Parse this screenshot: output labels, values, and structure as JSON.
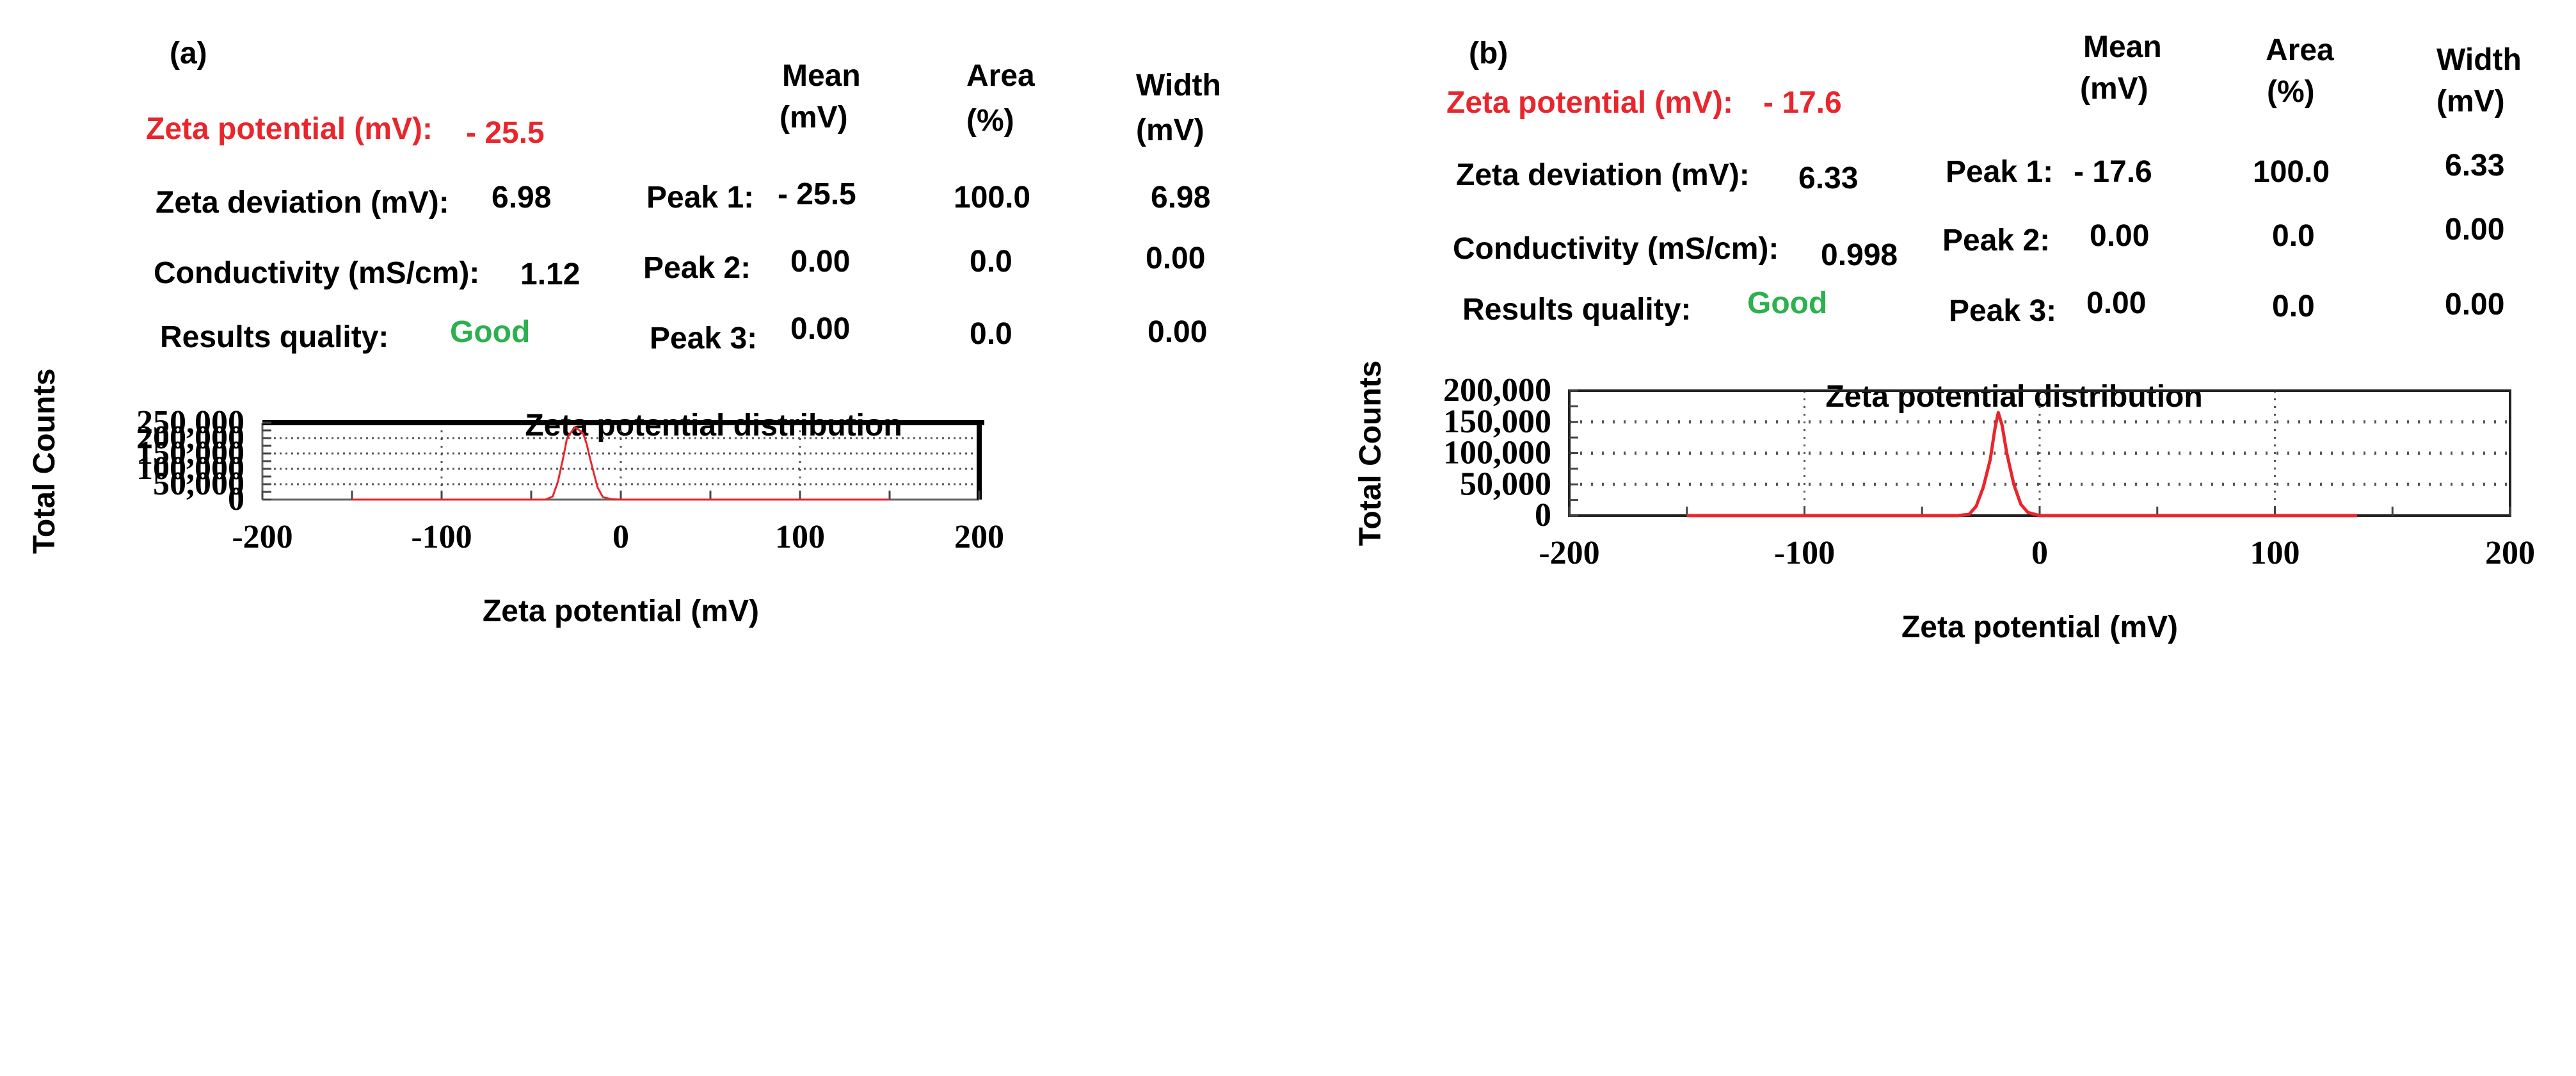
{
  "panels": [
    {
      "label": "(a)",
      "zeta_potential": {
        "label": "Zeta potential (mV):",
        "value": "- 25.5"
      },
      "zeta_deviation": {
        "label": "Zeta deviation (mV):",
        "value": "6.98"
      },
      "conductivity": {
        "label": "Conductivity (mS/cm):",
        "value": "1.12"
      },
      "results_quality": {
        "label": "Results quality:",
        "value": "Good"
      },
      "table": {
        "headers": {
          "mean": [
            "Mean",
            "(mV)"
          ],
          "area": [
            "Area",
            "(%)"
          ],
          "width": [
            "Width",
            "(mV)"
          ]
        },
        "rows": [
          {
            "label": "Peak 1:",
            "mean": "- 25.5",
            "area": "100.0",
            "width": "6.98"
          },
          {
            "label": "Peak 2:",
            "mean": "0.00",
            "area": "0.0",
            "width": "0.00"
          },
          {
            "label": "Peak 3:",
            "mean": "0.00",
            "area": "0.0",
            "width": "0.00"
          }
        ]
      }
    },
    {
      "label": "(b)",
      "zeta_potential": {
        "label": "Zeta potential (mV):",
        "value": "- 17.6"
      },
      "zeta_deviation": {
        "label": "Zeta deviation (mV):",
        "value": "6.33"
      },
      "conductivity": {
        "label": "Conductivity (mS/cm):",
        "value": "0.998"
      },
      "results_quality": {
        "label": "Results quality:",
        "value": "Good"
      },
      "table": {
        "headers": {
          "mean": [
            "Mean",
            "(mV)"
          ],
          "area": [
            "Area",
            "(%)"
          ],
          "width": [
            "Width",
            "(mV)"
          ]
        },
        "rows": [
          {
            "label": "Peak 1:",
            "mean": "- 17.6",
            "area": "100.0",
            "width": "6.33"
          },
          {
            "label": "Peak 2:",
            "mean": "0.00",
            "area": "0.0",
            "width": "0.00"
          },
          {
            "label": "Peak 3:",
            "mean": "0.00",
            "area": "0.0",
            "width": "0.00"
          }
        ]
      }
    }
  ],
  "colors": {
    "highlight": "#e8262c",
    "good": "#2db04e",
    "curve": "#e8262c"
  },
  "chart_data": [
    {
      "type": "line",
      "title": "Zeta potential distribution",
      "xlabel": "Zeta potential (mV)",
      "ylabel": "Total Counts",
      "xlim": [
        -200,
        200
      ],
      "ylim": [
        0,
        250000
      ],
      "xticks": [
        -200,
        -100,
        0,
        100,
        200
      ],
      "xtick_labels": [
        "-200",
        "-100",
        "0",
        "100",
        "200"
      ],
      "yticks": [
        0,
        50000,
        100000,
        150000,
        200000,
        250000
      ],
      "ytick_labels": [
        "0",
        "50,000",
        "100,000",
        "150,000",
        "200,000",
        "250,000"
      ],
      "grid": true,
      "series": [
        {
          "name": "Total Counts",
          "x": [
            -150,
            -100,
            -50,
            -42,
            -38,
            -35,
            -32,
            -30,
            -27,
            -25.5,
            -24,
            -21,
            -19,
            -17,
            -13,
            -10,
            -5,
            0,
            50,
            100,
            150
          ],
          "y": [
            0,
            0,
            0,
            0,
            10000,
            60000,
            140000,
            200000,
            225000,
            235000,
            230000,
            215000,
            180000,
            130000,
            40000,
            8000,
            1000,
            0,
            0,
            0,
            0
          ]
        }
      ]
    },
    {
      "type": "line",
      "title": "Zeta potential distribution",
      "xlabel": "Zeta potential (mV)",
      "ylabel": "Total Counts",
      "xlim": [
        -200,
        200
      ],
      "ylim": [
        0,
        200000
      ],
      "xticks": [
        -200,
        -100,
        0,
        100,
        200
      ],
      "xtick_labels": [
        "-200",
        "-100",
        "0",
        "100",
        "200"
      ],
      "yticks": [
        0,
        50000,
        100000,
        150000,
        200000
      ],
      "ytick_labels": [
        "0",
        "50,000",
        "100,000",
        "150,000",
        "200,000"
      ],
      "grid": true,
      "series": [
        {
          "name": "Total Counts",
          "x": [
            -150,
            -100,
            -50,
            -35,
            -30,
            -27,
            -24,
            -21,
            -19,
            -17.6,
            -16,
            -14,
            -11,
            -8,
            -5,
            0,
            50,
            100,
            135
          ],
          "y": [
            0,
            0,
            0,
            0,
            2000,
            15000,
            45000,
            90000,
            140000,
            165000,
            145000,
            100000,
            50000,
            18000,
            5000,
            0,
            0,
            0,
            0
          ]
        }
      ]
    }
  ]
}
